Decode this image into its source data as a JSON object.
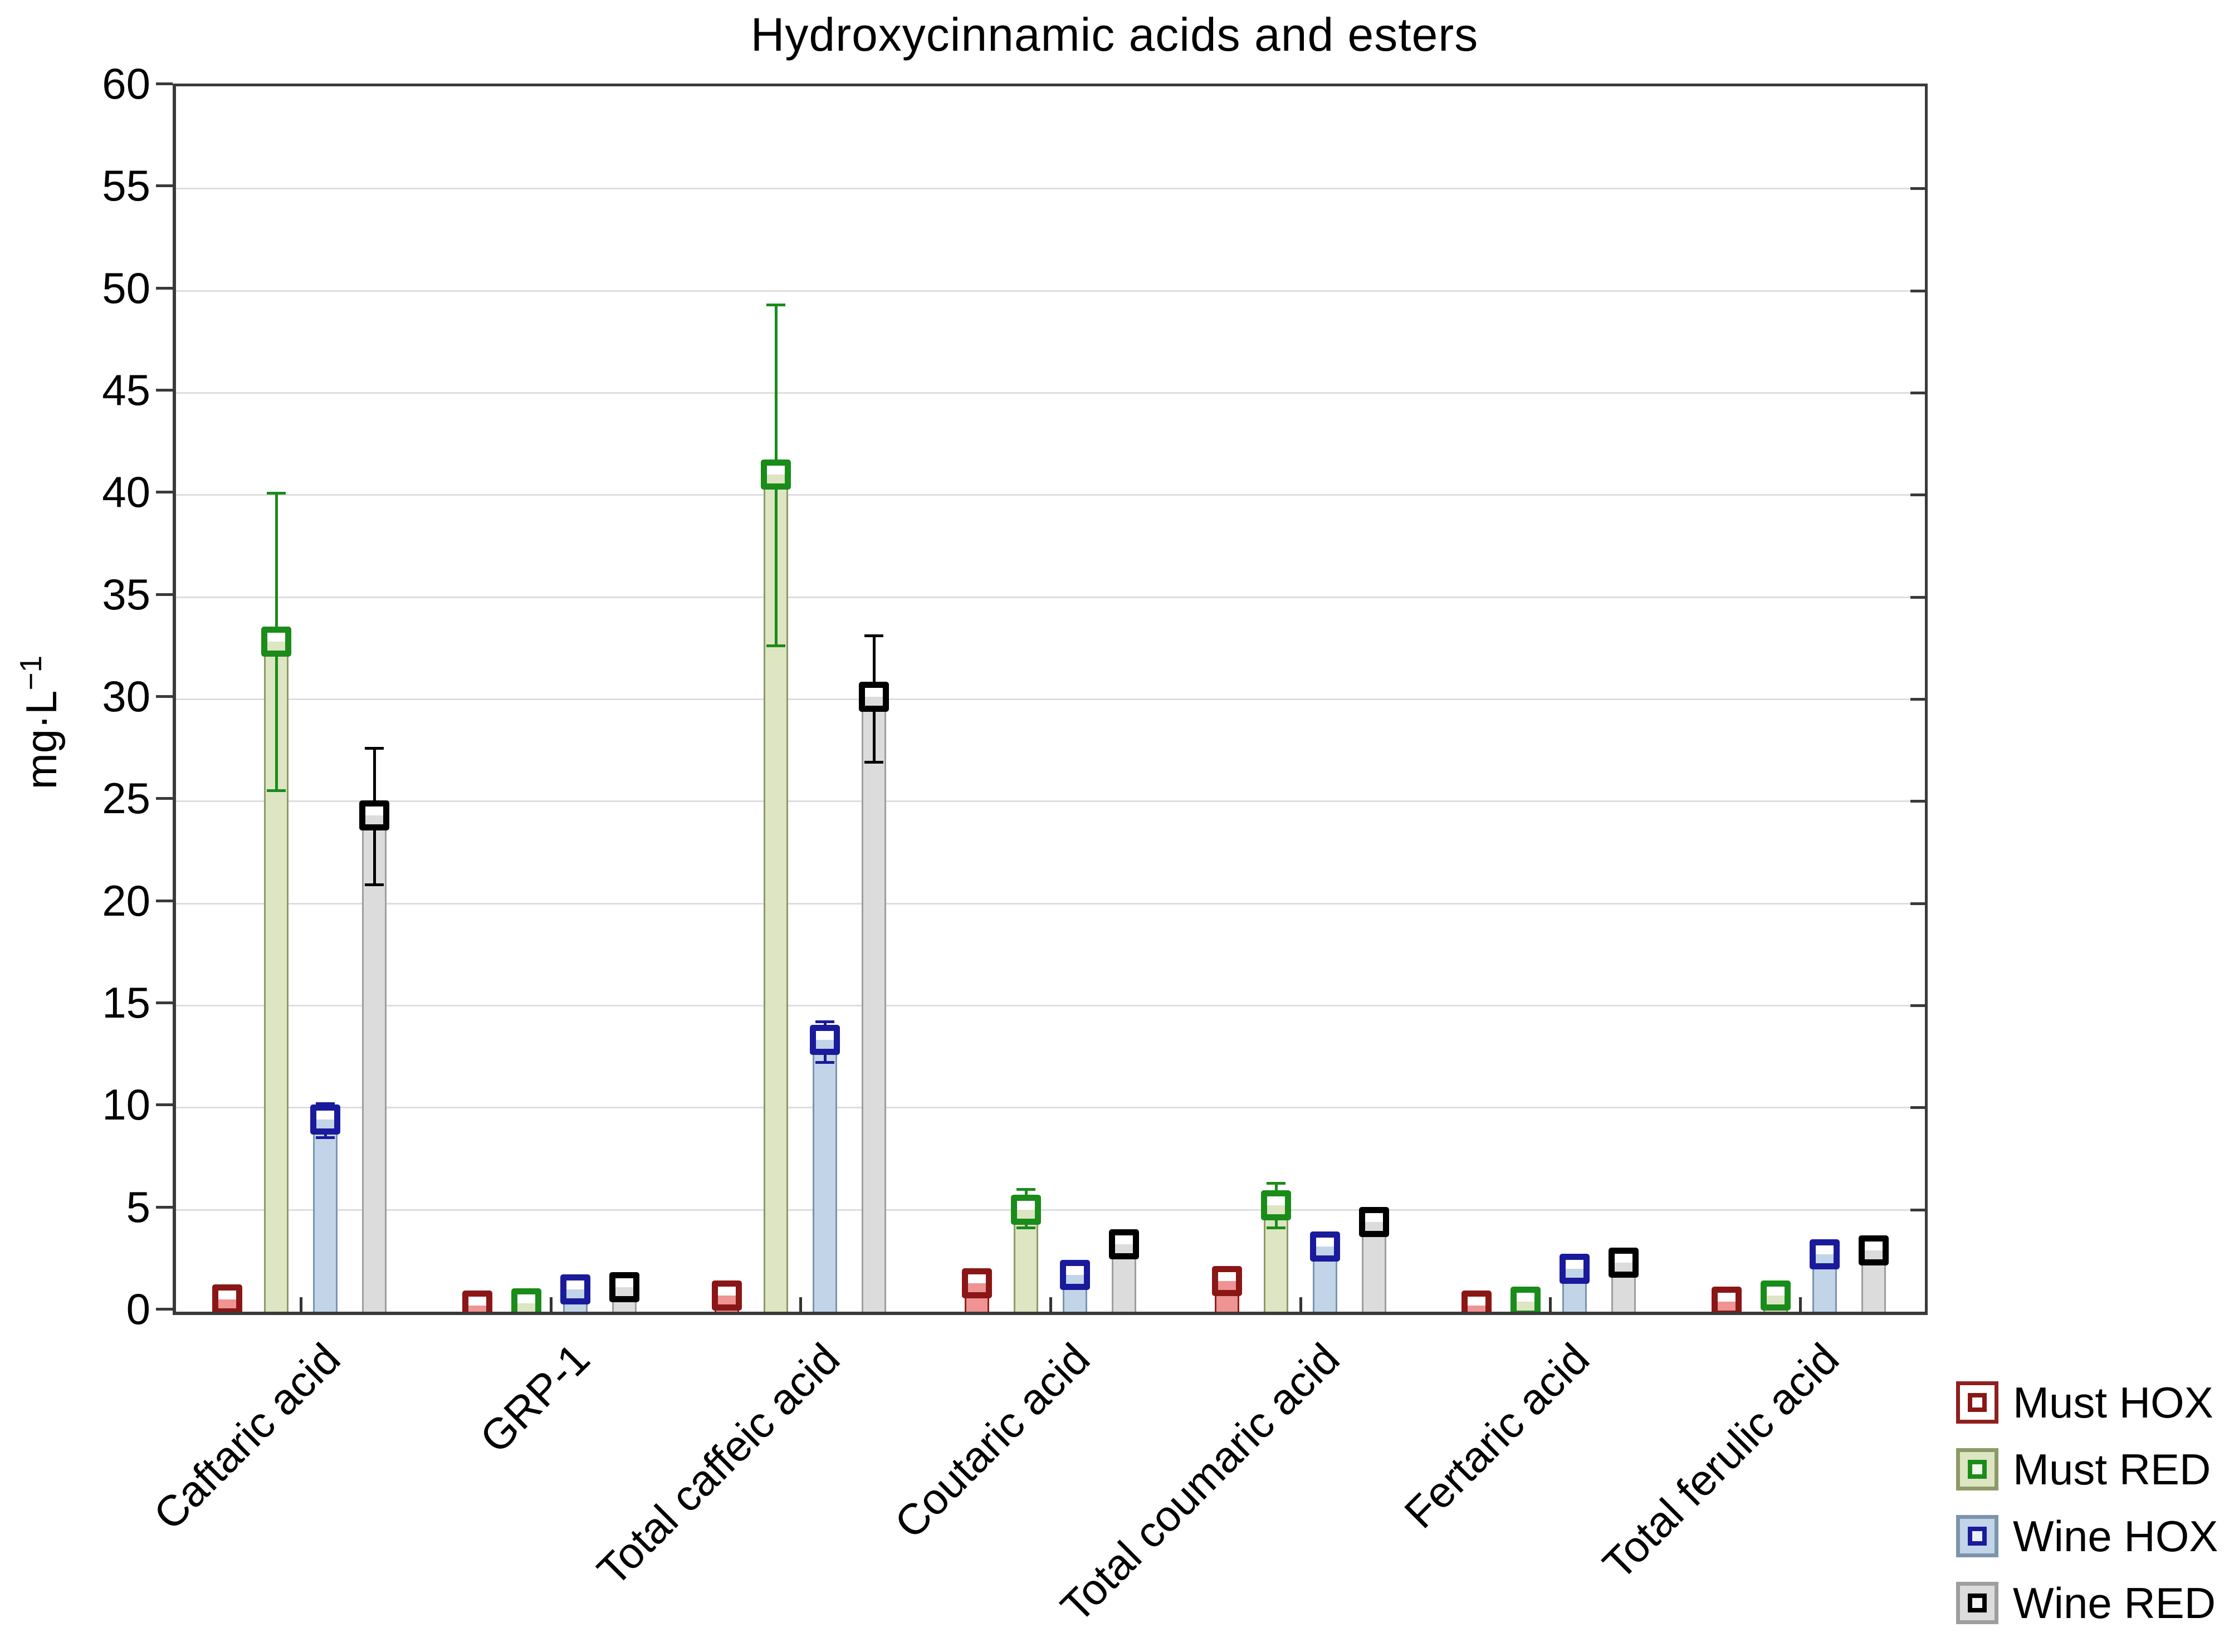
{
  "chart_data": {
    "type": "bar",
    "title": "Hydroxycinnamic acids and esters",
    "ylabel": {
      "base": "mg·L",
      "exponent": "−1",
      "full_text": "mg·L⁻¹"
    },
    "ylim": [
      0,
      60
    ],
    "yticks": [
      0,
      5,
      10,
      15,
      20,
      25,
      30,
      35,
      40,
      45,
      50,
      55,
      60
    ],
    "grid": true,
    "legend_position": "bottom-right",
    "categories": [
      "Caftaric acid",
      "GRP-1",
      "Total caffeic acid",
      "Coutaric acid",
      "Total coumaric acid",
      "Fertaric acid",
      "Total ferulic acid"
    ],
    "series": [
      {
        "name": "Must HOX",
        "marker_color": "#8b1616",
        "bar_fill": "#ef9393",
        "bar_edge": "#8f1f1f",
        "legend_fill": "#ffffff",
        "values": [
          0.6,
          0.3,
          0.8,
          1.4,
          1.5,
          0.3,
          0.5
        ],
        "err_up": [
          0.2,
          0.15,
          0.35,
          0.4,
          0.4,
          0.15,
          0.2
        ],
        "err_down": [
          0.2,
          0.15,
          0.35,
          0.4,
          0.4,
          0.15,
          0.2
        ]
      },
      {
        "name": "Must RED",
        "marker_color": "#1a8c1a",
        "bar_fill": "#dde5c2",
        "bar_edge": "#8d9a68",
        "legend_fill": "#dde5c2",
        "values": [
          32.8,
          0.4,
          41.0,
          5.0,
          5.2,
          0.5,
          0.8
        ],
        "err_up": [
          7.3,
          0.2,
          8.3,
          1.0,
          1.1,
          0.2,
          0.3
        ],
        "err_down": [
          7.3,
          0.2,
          8.4,
          0.9,
          1.1,
          0.3,
          0.3
        ]
      },
      {
        "name": "Wine HOX",
        "marker_color": "#1a1a9c",
        "bar_fill": "#c2d4e8",
        "bar_edge": "#7d94ad",
        "legend_fill": "#c2d4e8",
        "values": [
          9.4,
          1.1,
          13.3,
          1.8,
          3.2,
          2.1,
          2.8
        ],
        "err_up": [
          0.8,
          0.3,
          0.9,
          0.4,
          0.4,
          0.3,
          0.3
        ],
        "err_down": [
          0.9,
          0.3,
          1.1,
          0.4,
          0.4,
          0.3,
          0.3
        ]
      },
      {
        "name": "Wine RED",
        "marker_color": "#000000",
        "bar_fill": "#dcdcdc",
        "bar_edge": "#9e9e9e",
        "legend_fill": "#dcdcdc",
        "values": [
          24.3,
          1.2,
          30.1,
          3.3,
          4.4,
          2.4,
          3.0
        ],
        "err_up": [
          3.3,
          0.5,
          3.0,
          0.6,
          0.5,
          0.4,
          0.4
        ],
        "err_down": [
          3.4,
          0.5,
          3.2,
          0.6,
          0.5,
          0.4,
          0.4
        ]
      }
    ]
  }
}
